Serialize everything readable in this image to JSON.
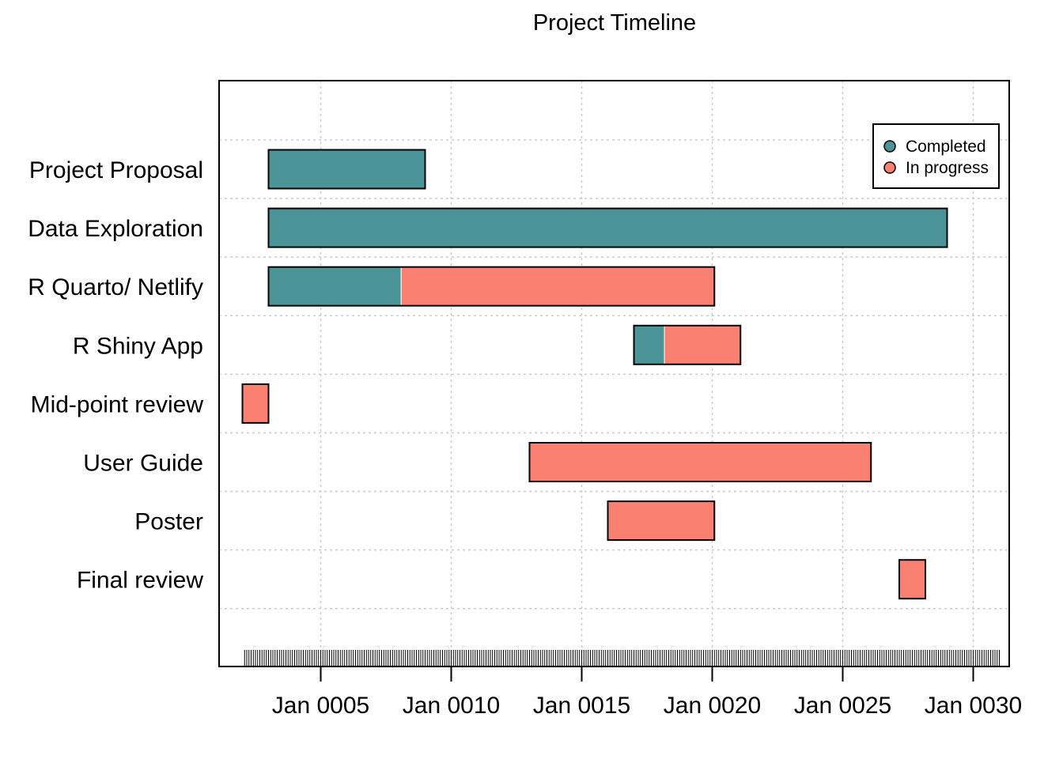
{
  "chart_data": {
    "type": "gantt",
    "title": "Project Timeline",
    "xlabel": "",
    "ylabel": "",
    "x_unit": "month",
    "x_range": [
      "0002-01",
      "0031-01"
    ],
    "x_ticks": [
      {
        "date": "0005-01",
        "label": "Jan 0005"
      },
      {
        "date": "0010-01",
        "label": "Jan 0010"
      },
      {
        "date": "0015-01",
        "label": "Jan 0015"
      },
      {
        "date": "0020-01",
        "label": "Jan 0020"
      },
      {
        "date": "0025-01",
        "label": "Jan 0025"
      },
      {
        "date": "0030-01",
        "label": "Jan 0030"
      }
    ],
    "grid": true,
    "minor_ticks": "monthly",
    "legend": {
      "position": "top-right",
      "entries": [
        {
          "label": "Completed",
          "color": "#4A9396"
        },
        {
          "label": "In progress",
          "color": "#FA8072"
        }
      ]
    },
    "colors": {
      "completed": "#4A9396",
      "in_progress": "#FA8072"
    },
    "tasks": [
      {
        "name": "Project Proposal",
        "segments": [
          {
            "start": "0003-01",
            "end": "0009-01",
            "status": "completed"
          }
        ]
      },
      {
        "name": "Data Exploration",
        "segments": [
          {
            "start": "0003-01",
            "end": "0029-01",
            "status": "completed"
          }
        ]
      },
      {
        "name": "R Quarto/ Netlify",
        "segments": [
          {
            "start": "0003-01",
            "end": "0008-02",
            "status": "completed"
          },
          {
            "start": "0008-02",
            "end": "0020-02",
            "status": "in_progress"
          }
        ]
      },
      {
        "name": "R Shiny App",
        "segments": [
          {
            "start": "0017-01",
            "end": "0018-03",
            "status": "completed"
          },
          {
            "start": "0018-03",
            "end": "0021-02",
            "status": "in_progress"
          }
        ]
      },
      {
        "name": "Mid-point review",
        "segments": [
          {
            "start": "0002-01",
            "end": "0003-01",
            "status": "in_progress"
          }
        ]
      },
      {
        "name": "User Guide",
        "segments": [
          {
            "start": "0013-01",
            "end": "0026-02",
            "status": "in_progress"
          }
        ]
      },
      {
        "name": "Poster",
        "segments": [
          {
            "start": "0016-01",
            "end": "0020-02",
            "status": "in_progress"
          }
        ]
      },
      {
        "name": "Final review",
        "segments": [
          {
            "start": "0027-03",
            "end": "0028-03",
            "status": "in_progress"
          }
        ]
      }
    ]
  }
}
